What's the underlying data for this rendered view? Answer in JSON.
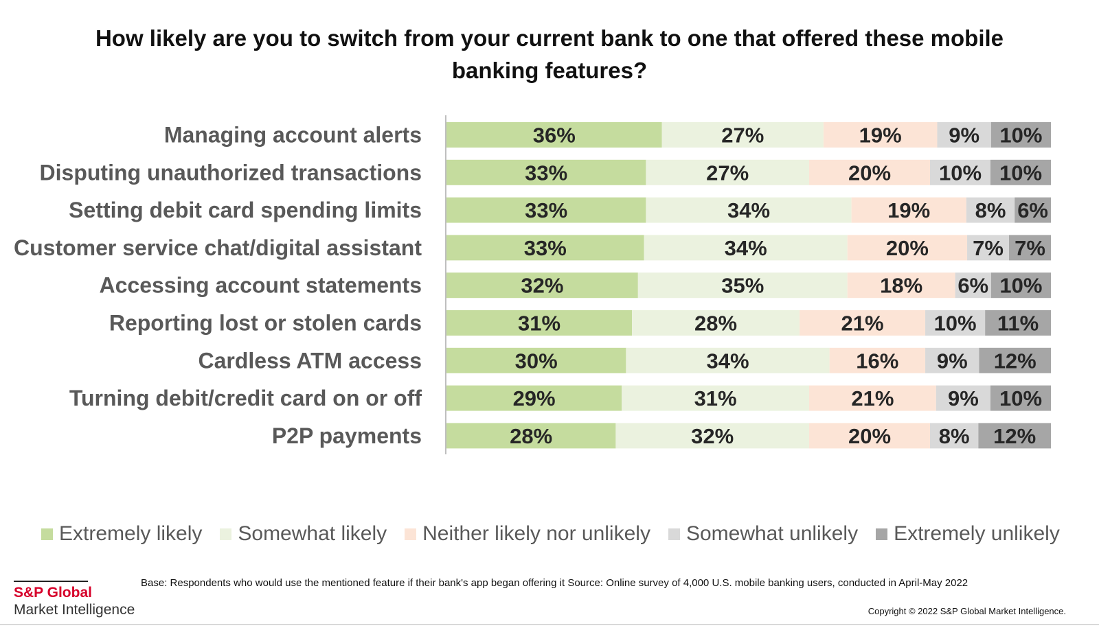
{
  "chart_data": {
    "type": "bar",
    "orientation": "horizontal",
    "stacked": true,
    "percent_stacked": true,
    "title": "How likely are you to switch from your current bank to one that offered these mobile banking features?",
    "categories": [
      "Managing account alerts",
      "Disputing unauthorized transactions",
      "Setting debit card spending limits",
      "Customer service chat/digital assistant",
      "Accessing account statements",
      "Reporting lost or stolen cards",
      "Cardless ATM access",
      "Turning debit/credit card on or off",
      "P2P payments"
    ],
    "series": [
      {
        "name": "Extremely likely",
        "color": "#c5dc9e",
        "values": [
          36,
          33,
          33,
          33,
          32,
          31,
          30,
          29,
          28
        ]
      },
      {
        "name": "Somewhat likely",
        "color": "#ebf2df",
        "values": [
          27,
          27,
          34,
          34,
          35,
          28,
          34,
          31,
          32
        ]
      },
      {
        "name": "Neither likely nor unlikely",
        "color": "#fce4d6",
        "values": [
          19,
          20,
          19,
          20,
          18,
          21,
          16,
          21,
          20
        ]
      },
      {
        "name": "Somewhat unlikely",
        "color": "#d9d9d9",
        "values": [
          9,
          10,
          8,
          7,
          6,
          10,
          9,
          9,
          8
        ]
      },
      {
        "name": "Extremely unlikely",
        "color": "#a6a6a6",
        "values": [
          10,
          10,
          6,
          7,
          10,
          11,
          12,
          10,
          12
        ]
      }
    ],
    "value_format": "%",
    "legend_position": "bottom",
    "grid": false
  },
  "footer": {
    "note": "Base: Respondents who would use the mentioned feature if their bank's app began offering it  Source: Online survey of 4,000 U.S. mobile banking users, conducted in April-May 2022",
    "copyright": "Copyright © 2022 S&P Global Market Intelligence."
  },
  "logo": {
    "brand": "S&P Global",
    "sub": "Market Intelligence"
  }
}
